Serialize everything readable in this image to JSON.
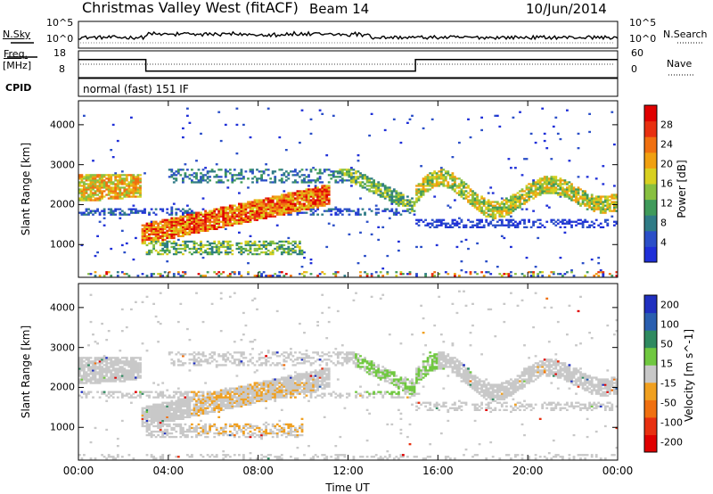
{
  "header": {
    "station": "Christmas Valley West (fitACF)",
    "beam": "Beam 14",
    "date": "10/Jun/2014"
  },
  "panels": {
    "nsky_label": "N.Sky",
    "nsearch_label": "N.Search",
    "freq_label_line1": "Freq.",
    "freq_label_line2": "[MHz]",
    "nave_label": "Nave",
    "cpid_label": "CPID",
    "cpid_value": "normal (fast) 151 IF",
    "noise_ticks_left": [
      "10^5",
      "10^0"
    ],
    "noise_ticks_right": [
      "10^5",
      "10^0"
    ],
    "freq_ticks": [
      "18",
      "8"
    ],
    "nave_ticks": [
      "60",
      "0"
    ]
  },
  "chart_data": [
    {
      "type": "heatmap",
      "name": "power",
      "ylabel": "Slant Range [km]",
      "xlabel": "",
      "x_ticks": [
        "00:00",
        "04:00",
        "08:00",
        "12:00",
        "16:00",
        "20:00",
        "00:00"
      ],
      "y_ticks": [
        1000,
        2000,
        3000,
        4000
      ],
      "ylim": [
        180,
        4600
      ],
      "colorbar": {
        "label": "Power [dB]",
        "ticks": [
          4,
          8,
          12,
          16,
          20,
          24,
          28
        ],
        "colors": [
          "#1f2fd8",
          "#2b4fc8",
          "#2f7b86",
          "#3f9a5a",
          "#88c040",
          "#d8d020",
          "#f0a010",
          "#f07010",
          "#e83010",
          "#e00000"
        ]
      },
      "features": [
        {
          "desc": "strong ionospheric band",
          "time_h": [
            2.8,
            11.0
          ],
          "range_km": [
            1100,
            2300
          ],
          "peak_db": 28
        },
        {
          "desc": "evening scatter band",
          "time_h": [
            0.0,
            2.8
          ],
          "range_km": [
            2100,
            2700
          ],
          "peak_db": 24
        },
        {
          "desc": "post-midnight arcs",
          "time_h": [
            15.0,
            24.0
          ],
          "range_km": [
            1500,
            3200
          ],
          "peak_db": 20
        }
      ]
    },
    {
      "type": "heatmap",
      "name": "velocity",
      "ylabel": "Slant Range [km]",
      "xlabel": "Time UT",
      "x_ticks": [
        "00:00",
        "04:00",
        "08:00",
        "12:00",
        "16:00",
        "20:00",
        "00:00"
      ],
      "y_ticks": [
        1000,
        2000,
        3000,
        4000
      ],
      "ylim": [
        180,
        4600
      ],
      "colorbar": {
        "label": "Velocity [m s^-1]",
        "ticks": [
          "200",
          "100",
          "50",
          "15",
          "-15",
          "-50",
          "-100",
          "-200"
        ],
        "colors": [
          "#2030c0",
          "#2a5fb0",
          "#2f8a60",
          "#70c840",
          "#c8c8c8",
          "#f0a020",
          "#f07010",
          "#e83010",
          "#e00000"
        ]
      },
      "features": [
        {
          "desc": "ground scatter (grey)",
          "time_h": [
            0.0,
            24.0
          ],
          "range_km": [
            1000,
            2700
          ],
          "velocity_ms": 0
        },
        {
          "desc": "negative velocity patch",
          "time_h": [
            5.0,
            10.5
          ],
          "range_km": [
            800,
            2100
          ],
          "velocity_ms": -50
        },
        {
          "desc": "positive velocity streaks",
          "time_h": [
            12.5,
            16.0
          ],
          "range_km": [
            1900,
            2900
          ],
          "velocity_ms": 50
        }
      ]
    }
  ]
}
